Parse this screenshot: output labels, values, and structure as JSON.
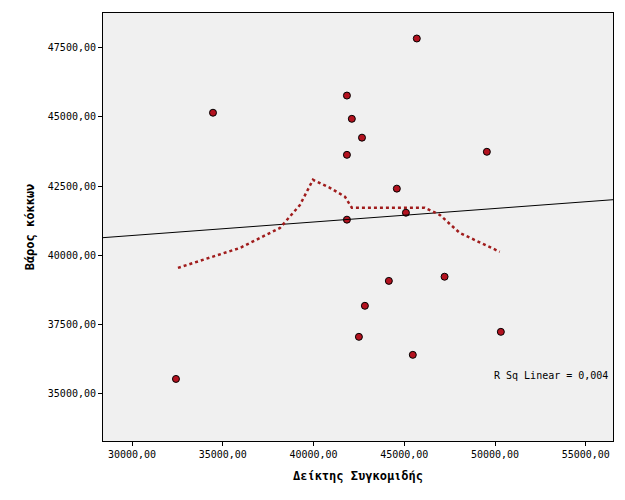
{
  "chart_data": {
    "type": "scatter",
    "x_label": "Δείκτης Συγκομιδής",
    "y_label": "Βάρος κόκκων",
    "annotation": "R Sq Linear = 0,004",
    "xlim": [
      28400,
      56500
    ],
    "ylim": [
      33300,
      48750
    ],
    "xticks": [
      {
        "value": 30000,
        "label": "30000,00"
      },
      {
        "value": 35000,
        "label": "35000,00"
      },
      {
        "value": 40000,
        "label": "40000,00"
      },
      {
        "value": 45000,
        "label": "45000,00"
      },
      {
        "value": 50000,
        "label": "50000,00"
      },
      {
        "value": 55000,
        "label": "55000,00"
      }
    ],
    "yticks": [
      {
        "value": 35000,
        "label": "35000,00"
      },
      {
        "value": 37500,
        "label": "37500,00"
      },
      {
        "value": 40000,
        "label": "40000,00"
      },
      {
        "value": 42500,
        "label": "42500,00"
      },
      {
        "value": 45000,
        "label": "45000,00"
      },
      {
        "value": 47500,
        "label": "47500,00"
      }
    ],
    "grid": false,
    "series": [
      {
        "type": "scatter",
        "marker": "circle",
        "color": "#b3121f",
        "x": [
          34460,
          41840,
          45690,
          42110,
          42670,
          41840,
          49550,
          44590,
          41840,
          45090,
          44150,
          47220,
          42830,
          42500,
          45470,
          50320,
          32420
        ],
        "values": [
          45150,
          45770,
          47830,
          44930,
          44250,
          43630,
          43740,
          42410,
          41290,
          41540,
          39080,
          39230,
          38180,
          37060,
          36410,
          37240,
          35540
        ]
      },
      {
        "type": "line",
        "line_style": "solid",
        "color": "#000000",
        "x": [
          28400,
          56500
        ],
        "values": [
          40640,
          42010
        ]
      },
      {
        "type": "line",
        "line_style": "dotted",
        "color": "#a01c1c",
        "x": [
          32530,
          35950,
          38150,
          39250,
          39970,
          40900,
          41730,
          42110,
          43110,
          44760,
          46130,
          46960,
          48060,
          50260
        ],
        "values": [
          39550,
          40270,
          40990,
          41820,
          42730,
          42440,
          42120,
          41720,
          41720,
          41720,
          41720,
          41460,
          40810,
          40130
        ]
      }
    ]
  }
}
